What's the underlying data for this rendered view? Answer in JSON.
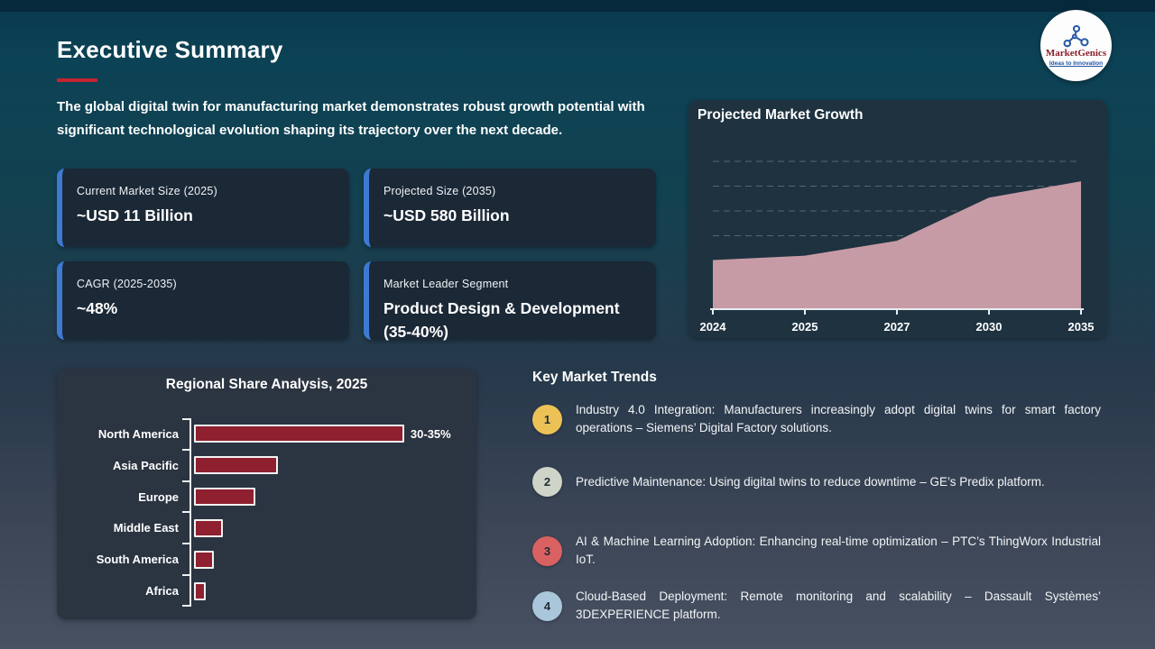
{
  "header": {
    "title": "Executive Summary",
    "intro": "The global digital twin for manufacturing market demonstrates robust growth potential with significant technological evolution shaping its trajectory over the next decade."
  },
  "logo": {
    "brand": "MarketGenics",
    "tagline": "Ideas to Innovation"
  },
  "stat_cards": [
    {
      "label": "Current Market Size (2025)",
      "value": "~USD 11 Billion"
    },
    {
      "label": "Projected Size (2035)",
      "value": "~USD 580 Billion"
    },
    {
      "label": "CAGR (2025-2035)",
      "value": "~48%"
    },
    {
      "label": "Market Leader Segment",
      "value": "Product Design & Development (35-40%)"
    }
  ],
  "chart_data": [
    {
      "type": "area",
      "title": "Projected Market Growth",
      "x": [
        "2024",
        "2025",
        "2027",
        "2030",
        "2035"
      ],
      "values": [
        33,
        36,
        46,
        75,
        86
      ],
      "xlabel": "",
      "ylabel": "",
      "ylim": [
        0,
        100
      ],
      "grid": "dashed horizontal, 6 lines, no y-axis labels",
      "area_color": "#c79ba5",
      "axis_color": "#e8eef2"
    },
    {
      "type": "bar",
      "orientation": "horizontal",
      "title": "Regional Share Analysis, 2025",
      "categories": [
        "North America",
        "Asia Pacific",
        "Europe",
        "Middle East",
        "South America",
        "Africa"
      ],
      "values": [
        32.5,
        13,
        9.5,
        4.5,
        3,
        1.8
      ],
      "data_labels": [
        "30-35%",
        "",
        "",
        "",
        "",
        ""
      ],
      "xlim": [
        0,
        36
      ],
      "bar_color": "#8e2030",
      "bar_border_color": "#f2f2f2"
    }
  ],
  "trends": {
    "heading": "Key Market Trends",
    "items": [
      {
        "number": "1",
        "color": "#ecc257",
        "text": "Industry 4.0 Integration: Manufacturers increasingly adopt digital twins for smart factory operations – Siemens’ Digital Factory solutions."
      },
      {
        "number": "2",
        "color": "#ced5c8",
        "text": "Predictive Maintenance: Using digital twins to reduce downtime – GE’s Predix platform."
      },
      {
        "number": "3",
        "color": "#d96161",
        "text": "AI & Machine Learning Adoption: Enhancing real-time optimization – PTC’s ThingWorx Industrial IoT."
      },
      {
        "number": "4",
        "color": "#a9c6da",
        "text": "Cloud-Based Deployment: Remote monitoring and scalability – Dassault Systèmes’ 3DEXPERIENCE platform."
      }
    ]
  },
  "colors": {
    "background_top": "#0c4255",
    "background_bottom": "#475162",
    "accent_red": "#c32430",
    "accent_blue": "#3d7ad4",
    "card_bg": "#1b2836"
  }
}
